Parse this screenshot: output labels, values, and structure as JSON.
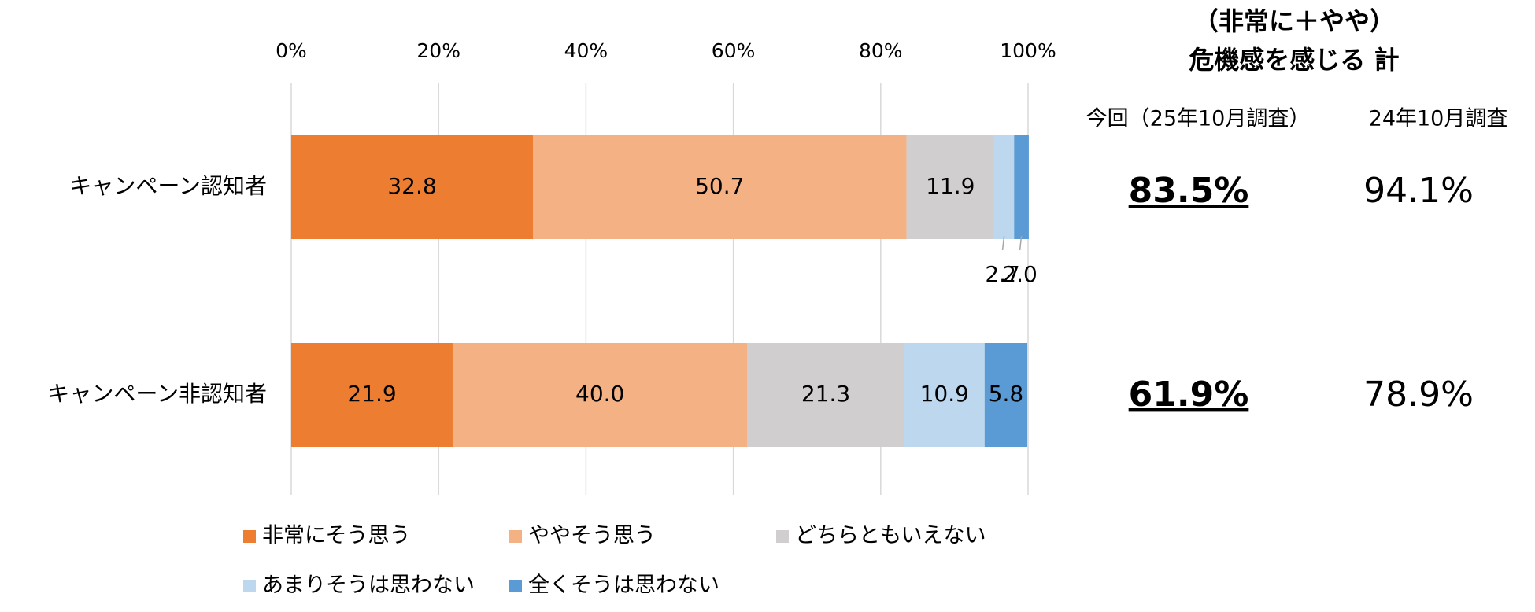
{
  "chart_data": {
    "type": "bar",
    "orientation": "horizontal",
    "stacked": true,
    "categories": [
      "キャンペーン認知者",
      "キャンペーン非認知者"
    ],
    "series": [
      {
        "name": "非常にそう思う",
        "color": "#ED7D31",
        "values": [
          32.8,
          21.9
        ]
      },
      {
        "name": "ややそう思う",
        "color": "#F4B183",
        "values": [
          50.7,
          40.0
        ],
        "value_labels": [
          "50.7",
          "40.0"
        ]
      },
      {
        "name": "どちらともいえない",
        "color": "#D0CECE",
        "values": [
          11.9,
          21.3
        ]
      },
      {
        "name": "あまりそうは思わない",
        "color": "#BDD7EE",
        "values": [
          2.7,
          10.9
        ]
      },
      {
        "name": "全くそうは思わない",
        "color": "#5B9BD5",
        "values": [
          2.0,
          5.8
        ],
        "value_labels": [
          "2.0",
          "5.8"
        ]
      }
    ],
    "xlim": [
      0,
      100
    ],
    "xticks": [
      {
        "value": 0,
        "label": "0%"
      },
      {
        "value": 20,
        "label": "20%"
      },
      {
        "value": 40,
        "label": "40%"
      },
      {
        "value": 60,
        "label": "60%"
      },
      {
        "value": 80,
        "label": "80%"
      },
      {
        "value": 100,
        "label": "100%"
      }
    ],
    "grid": true,
    "legend": "bottom"
  },
  "summary": {
    "title_lines": [
      "（非常に＋やや）",
      "危機感を感じる 計"
    ],
    "columns": [
      "今回（25年10月調査）",
      "24年10月調査"
    ],
    "rows": [
      [
        "83.5%",
        "94.1%"
      ],
      [
        "61.9%",
        "78.9%"
      ]
    ]
  }
}
